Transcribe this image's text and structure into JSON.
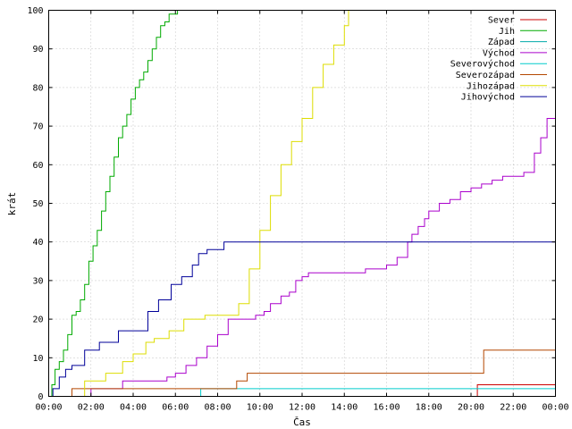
{
  "chart_data": {
    "type": "line",
    "title": "",
    "xlabel": "Čas",
    "ylabel": "krát",
    "xlim": [
      0,
      24
    ],
    "ylim": [
      0,
      100
    ],
    "grid": true,
    "legend_position": "top-right",
    "x_ticks": [
      "00:00",
      "02:00",
      "04:00",
      "06:00",
      "08:00",
      "10:00",
      "12:00",
      "14:00",
      "16:00",
      "18:00",
      "20:00",
      "22:00",
      "00:00"
    ],
    "y_ticks": [
      0,
      10,
      20,
      30,
      40,
      50,
      60,
      70,
      80,
      90,
      100
    ],
    "series": [
      {
        "name": "Sever",
        "color": "#cc0000",
        "x": [
          0,
          20.3,
          20.3,
          23.8,
          24
        ],
        "y": [
          0,
          0,
          3,
          3,
          4
        ]
      },
      {
        "name": "Jih",
        "color": "#00aa00",
        "x": [
          0,
          0.15,
          0.3,
          0.5,
          0.7,
          0.9,
          1.1,
          1.3,
          1.5,
          1.7,
          1.9,
          2.1,
          2.3,
          2.5,
          2.7,
          2.9,
          3.1,
          3.3,
          3.5,
          3.7,
          3.9,
          4.1,
          4.3,
          4.5,
          4.7,
          4.9,
          5.1,
          5.3,
          5.5,
          5.7,
          5.9,
          6.1,
          6.25
        ],
        "y": [
          0,
          3,
          7,
          9,
          12,
          16,
          21,
          22,
          25,
          29,
          35,
          39,
          43,
          48,
          53,
          57,
          62,
          67,
          70,
          73,
          77,
          80,
          82,
          84,
          87,
          90,
          93,
          96,
          97,
          99,
          99,
          100,
          100
        ]
      },
      {
        "name": "Západ",
        "color": "#00aaaa",
        "x": [
          0,
          24
        ],
        "y": [
          0,
          0
        ]
      },
      {
        "name": "Východ",
        "color": "#aa00cc",
        "x": [
          0,
          2.0,
          2.0,
          3.5,
          3.5,
          5.3,
          5.6,
          6.0,
          6.5,
          7.0,
          7.5,
          8.0,
          8.5,
          9.0,
          9.3,
          9.8,
          10.2,
          10.5,
          11.0,
          11.4,
          11.7,
          12.0,
          12.3,
          13.0,
          14.0,
          15.0,
          16.0,
          16.5,
          17.0,
          17.2,
          17.5,
          17.8,
          18.0,
          18.5,
          19.0,
          19.5,
          20.0,
          20.5,
          21.0,
          21.5,
          22.0,
          22.5,
          23.0,
          23.3,
          23.6,
          24
        ],
        "y": [
          0,
          0,
          2,
          2,
          4,
          4,
          5,
          6,
          8,
          10,
          13,
          16,
          20,
          20,
          20,
          21,
          22,
          24,
          26,
          27,
          30,
          31,
          32,
          32,
          32,
          33,
          34,
          36,
          40,
          42,
          44,
          46,
          48,
          50,
          51,
          53,
          54,
          55,
          56,
          57,
          57,
          58,
          63,
          67,
          72,
          72
        ]
      },
      {
        "name": "Severovýchod",
        "color": "#00cccc",
        "x": [
          0,
          7.2,
          7.2,
          24
        ],
        "y": [
          0,
          0,
          2,
          2
        ]
      },
      {
        "name": "Severozápad",
        "color": "#b34700",
        "x": [
          0,
          1.1,
          1.1,
          8.9,
          8.9,
          9.4,
          9.4,
          20.6,
          20.6,
          24
        ],
        "y": [
          0,
          0,
          2,
          2,
          4,
          4,
          6,
          6,
          12,
          12
        ]
      },
      {
        "name": "Jihozápad",
        "color": "#dddd00",
        "x": [
          0,
          1.4,
          1.7,
          2.7,
          3.5,
          4.0,
          4.6,
          5.0,
          5.7,
          6.4,
          7.4,
          8.4,
          9.0,
          9.5,
          10.0,
          10.5,
          11.0,
          11.5,
          12.0,
          12.5,
          13.0,
          13.5,
          14.0,
          14.2
        ],
        "y": [
          0,
          0,
          4,
          6,
          9,
          11,
          14,
          15,
          17,
          20,
          21,
          21,
          24,
          33,
          43,
          52,
          60,
          66,
          72,
          80,
          86,
          91,
          96,
          100
        ]
      },
      {
        "name": "Jihovýchod",
        "color": "#000099",
        "x": [
          0,
          0.2,
          0.5,
          0.8,
          1.1,
          1.7,
          2.4,
          3.3,
          4.0,
          4.7,
          5.2,
          5.8,
          6.3,
          6.8,
          7.1,
          7.5,
          7.9,
          8.3,
          24
        ],
        "y": [
          0,
          2,
          5,
          7,
          8,
          12,
          14,
          17,
          17,
          22,
          25,
          29,
          31,
          34,
          37,
          38,
          38,
          40,
          40
        ]
      }
    ]
  }
}
